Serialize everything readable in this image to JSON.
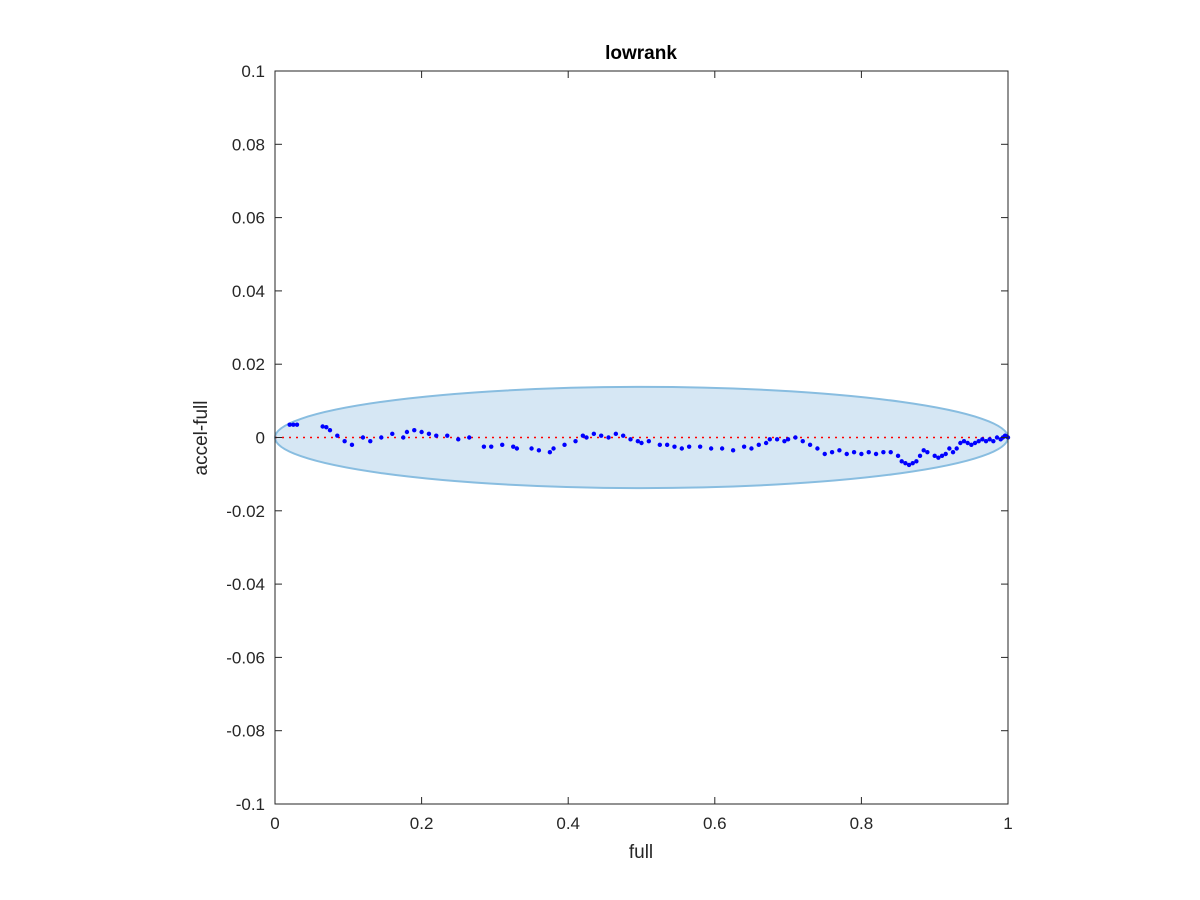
{
  "chart_data": {
    "type": "scatter",
    "title": "lowrank",
    "xlabel": "full",
    "ylabel": "accel-full",
    "xlim": [
      0,
      1
    ],
    "ylim": [
      -0.1,
      0.1
    ],
    "xticks": [
      0,
      0.2,
      0.4,
      0.6,
      0.8,
      1
    ],
    "xtick_labels": [
      "0",
      "0.2",
      "0.4",
      "0.6",
      "0.8",
      "1"
    ],
    "yticks": [
      -0.1,
      -0.08,
      -0.06,
      -0.04,
      -0.02,
      0,
      0.02,
      0.04,
      0.06,
      0.08,
      0.1
    ],
    "ytick_labels": [
      "-0.1",
      "-0.08",
      "-0.06",
      "-0.04",
      "-0.02",
      "0",
      "0.02",
      "0.04",
      "0.06",
      "0.08",
      "0.1"
    ],
    "grid": false,
    "reference_line": {
      "y": 0,
      "style": "dotted",
      "color": "#ff0000"
    },
    "ellipse": {
      "cx": 0.5,
      "cy": 0,
      "rx": 0.5,
      "ry": 0.0138,
      "fill": "#d6e7f4",
      "stroke": "#88bde0"
    },
    "series": [
      {
        "color": "#0000ff",
        "points": [
          [
            0.02,
            0.0035
          ],
          [
            0.025,
            0.0035
          ],
          [
            0.03,
            0.0035
          ],
          [
            0.065,
            0.003
          ],
          [
            0.07,
            0.0028
          ],
          [
            0.075,
            0.002
          ],
          [
            0.085,
            0.0005
          ],
          [
            0.095,
            -0.001
          ],
          [
            0.105,
            -0.002
          ],
          [
            0.12,
            0.0
          ],
          [
            0.13,
            -0.001
          ],
          [
            0.145,
            0.0
          ],
          [
            0.16,
            0.001
          ],
          [
            0.175,
            0.0
          ],
          [
            0.18,
            0.0015
          ],
          [
            0.19,
            0.002
          ],
          [
            0.2,
            0.0015
          ],
          [
            0.21,
            0.001
          ],
          [
            0.22,
            0.0005
          ],
          [
            0.235,
            0.0005
          ],
          [
            0.25,
            -0.0005
          ],
          [
            0.265,
            0.0
          ],
          [
            0.285,
            -0.0025
          ],
          [
            0.295,
            -0.0025
          ],
          [
            0.31,
            -0.002
          ],
          [
            0.325,
            -0.0025
          ],
          [
            0.33,
            -0.003
          ],
          [
            0.35,
            -0.003
          ],
          [
            0.36,
            -0.0035
          ],
          [
            0.375,
            -0.004
          ],
          [
            0.38,
            -0.003
          ],
          [
            0.395,
            -0.002
          ],
          [
            0.41,
            -0.001
          ],
          [
            0.42,
            0.0005
          ],
          [
            0.425,
            0.0
          ],
          [
            0.435,
            0.001
          ],
          [
            0.445,
            0.0005
          ],
          [
            0.455,
            0.0
          ],
          [
            0.465,
            0.001
          ],
          [
            0.475,
            0.0005
          ],
          [
            0.485,
            -0.0005
          ],
          [
            0.495,
            -0.001
          ],
          [
            0.5,
            -0.0015
          ],
          [
            0.51,
            -0.001
          ],
          [
            0.525,
            -0.002
          ],
          [
            0.535,
            -0.002
          ],
          [
            0.545,
            -0.0025
          ],
          [
            0.555,
            -0.003
          ],
          [
            0.565,
            -0.0025
          ],
          [
            0.58,
            -0.0025
          ],
          [
            0.595,
            -0.003
          ],
          [
            0.61,
            -0.003
          ],
          [
            0.625,
            -0.0035
          ],
          [
            0.64,
            -0.0025
          ],
          [
            0.65,
            -0.003
          ],
          [
            0.66,
            -0.002
          ],
          [
            0.67,
            -0.0015
          ],
          [
            0.675,
            -0.0005
          ],
          [
            0.685,
            -0.0005
          ],
          [
            0.695,
            -0.001
          ],
          [
            0.7,
            -0.0005
          ],
          [
            0.71,
            0.0
          ],
          [
            0.72,
            -0.001
          ],
          [
            0.73,
            -0.002
          ],
          [
            0.74,
            -0.003
          ],
          [
            0.75,
            -0.0045
          ],
          [
            0.76,
            -0.004
          ],
          [
            0.77,
            -0.0035
          ],
          [
            0.78,
            -0.0045
          ],
          [
            0.79,
            -0.004
          ],
          [
            0.8,
            -0.0045
          ],
          [
            0.81,
            -0.004
          ],
          [
            0.82,
            -0.0045
          ],
          [
            0.83,
            -0.004
          ],
          [
            0.84,
            -0.004
          ],
          [
            0.85,
            -0.005
          ],
          [
            0.855,
            -0.0065
          ],
          [
            0.86,
            -0.007
          ],
          [
            0.865,
            -0.0075
          ],
          [
            0.87,
            -0.007
          ],
          [
            0.875,
            -0.0065
          ],
          [
            0.88,
            -0.005
          ],
          [
            0.885,
            -0.0035
          ],
          [
            0.89,
            -0.004
          ],
          [
            0.9,
            -0.005
          ],
          [
            0.905,
            -0.0055
          ],
          [
            0.91,
            -0.005
          ],
          [
            0.915,
            -0.0045
          ],
          [
            0.92,
            -0.003
          ],
          [
            0.925,
            -0.004
          ],
          [
            0.93,
            -0.003
          ],
          [
            0.935,
            -0.0015
          ],
          [
            0.94,
            -0.001
          ],
          [
            0.945,
            -0.0015
          ],
          [
            0.95,
            -0.002
          ],
          [
            0.955,
            -0.0015
          ],
          [
            0.96,
            -0.001
          ],
          [
            0.965,
            -0.0005
          ],
          [
            0.97,
            -0.001
          ],
          [
            0.975,
            -0.0005
          ],
          [
            0.98,
            -0.001
          ],
          [
            0.985,
            0.0
          ],
          [
            0.99,
            -0.0005
          ],
          [
            0.993,
            0.0
          ],
          [
            0.996,
            0.0005
          ],
          [
            0.998,
            0.0003
          ],
          [
            1.0,
            0.0
          ]
        ]
      }
    ]
  }
}
